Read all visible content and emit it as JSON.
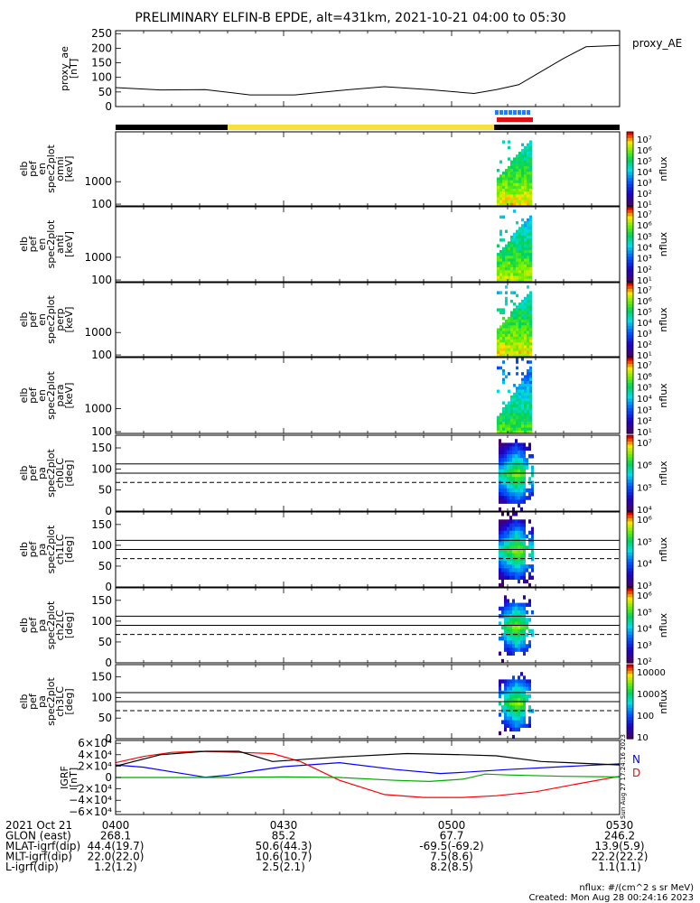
{
  "title": "PRELIMINARY ELFIN-B EPDE, alt=431km, 2021-10-21 04:00 to 05:30",
  "colors": {
    "n": "#0000ff",
    "d": "#ff0000",
    "ae_line": "#000000",
    "bar_black": "#000000",
    "bar_yellow": "#f7e03a",
    "bar_blue": "#1e7ff0",
    "bar_red": "#e01010"
  },
  "chart_data": [
    {
      "type": "line",
      "panel": "proxy_ae",
      "ylabel": [
        "proxy_ae",
        "[nT]"
      ],
      "legend": "proxy_AE",
      "yticks": [
        "250",
        "200",
        "150",
        "100",
        "50",
        "0"
      ],
      "ylim": [
        0,
        260
      ],
      "x_minutes": [
        0,
        8,
        16,
        24,
        32,
        40,
        48,
        56,
        64,
        68,
        72,
        76,
        80,
        84,
        90
      ],
      "values": [
        65,
        57,
        58,
        40,
        40,
        55,
        68,
        58,
        45,
        58,
        75,
        120,
        165,
        205,
        210
      ]
    },
    {
      "type": "heatmap",
      "panel": "elb_pef_en_spec2plot_omni",
      "ylabel": [
        "elb",
        "pef",
        "en",
        "spec2plot",
        "omni",
        "[keV]"
      ],
      "yticks": [
        "1000",
        "100"
      ],
      "zlabel": "nflux",
      "zticks": [
        "10⁷",
        "10⁶",
        "10⁵",
        "10⁴",
        "10³",
        "10²",
        "10¹"
      ]
    },
    {
      "type": "heatmap",
      "panel": "elb_pef_en_spec2plot_anti",
      "ylabel": [
        "elb",
        "pef",
        "en",
        "spec2plot",
        "anti",
        "[keV]"
      ],
      "yticks": [
        "1000",
        "100"
      ],
      "zlabel": "nflux",
      "zticks": [
        "10⁷",
        "10⁶",
        "10⁵",
        "10⁴",
        "10³",
        "10²",
        "10¹"
      ]
    },
    {
      "type": "heatmap",
      "panel": "elb_pef_en_spec2plot_perp",
      "ylabel": [
        "elb",
        "pef",
        "en",
        "spec2plot",
        "perp",
        "[keV]"
      ],
      "yticks": [
        "1000",
        "100"
      ],
      "zlabel": "nflux",
      "zticks": [
        "10⁷",
        "10⁶",
        "10⁵",
        "10⁴",
        "10³",
        "10²",
        "10¹"
      ]
    },
    {
      "type": "heatmap",
      "panel": "elb_pef_en_spec2plot_para",
      "ylabel": [
        "elb",
        "pef",
        "en",
        "spec2plot",
        "para",
        "[keV]"
      ],
      "yticks": [
        "1000",
        "100"
      ],
      "zlabel": "nflux",
      "zticks": [
        "10⁷",
        "10⁶",
        "10⁵",
        "10⁴",
        "10³",
        "10²",
        "10¹"
      ]
    },
    {
      "type": "heatmap",
      "panel": "elb_pef_pa_spec2plot_ch0LC",
      "ylabel": [
        "elb",
        "pef",
        "pa",
        "spec2plot",
        "ch0LC",
        "[deg]"
      ],
      "yticks": [
        "150",
        "100",
        "50",
        "0"
      ],
      "zlabel": "nflux",
      "zticks": [
        "10⁷",
        "10⁶",
        "10⁵",
        "10⁴"
      ]
    },
    {
      "type": "heatmap",
      "panel": "elb_pef_pa_spec2plot_ch1LC",
      "ylabel": [
        "elb",
        "pef",
        "pa",
        "spec2plot",
        "ch1LC",
        "[deg]"
      ],
      "yticks": [
        "150",
        "100",
        "50",
        "0"
      ],
      "zlabel": "nflux",
      "zticks": [
        "10⁶",
        "10⁵",
        "10⁴",
        "10³"
      ]
    },
    {
      "type": "heatmap",
      "panel": "elb_pef_pa_spec2plot_ch2LC",
      "ylabel": [
        "elb",
        "pef",
        "pa",
        "spec2plot",
        "ch2LC",
        "[deg]"
      ],
      "yticks": [
        "150",
        "100",
        "50",
        "0"
      ],
      "zlabel": "nflux",
      "zticks": [
        "10⁶",
        "10⁵",
        "10⁴",
        "10³",
        "10²"
      ]
    },
    {
      "type": "heatmap",
      "panel": "elb_pef_pa_spec2plot_ch3LC",
      "ylabel": [
        "elb",
        "pef",
        "pa",
        "spec2plot",
        "ch3LC",
        "[deg]"
      ],
      "yticks": [
        "150",
        "100",
        "50",
        "0"
      ],
      "zlabel": "nflux",
      "zticks": [
        "10000",
        "1000",
        "100",
        "10"
      ]
    },
    {
      "type": "line",
      "panel": "IGRF",
      "ylabel": [
        "IGRF",
        "[nT]"
      ],
      "yticks": [
        "6×10⁴",
        "4×10⁴",
        "2×10⁴",
        "0",
        "−2×10⁴",
        "−4×10⁴",
        "−6×10⁴"
      ],
      "ylim": [
        -65000,
        65000
      ],
      "legend": [
        "N",
        "D"
      ],
      "series": [
        {
          "name": "N",
          "color": "#0000ff",
          "x_minutes": [
            0,
            5,
            10,
            16,
            20,
            25,
            30,
            40,
            50,
            58,
            62,
            70,
            80,
            90
          ],
          "values": [
            22000,
            18000,
            10000,
            500,
            4000,
            12000,
            19000,
            26000,
            14000,
            7000,
            9000,
            14000,
            19000,
            24000
          ]
        },
        {
          "name": "D",
          "color": "#ff0000",
          "x_minutes": [
            0,
            5,
            10,
            15,
            22,
            28,
            33,
            40,
            48,
            55,
            62,
            68,
            75,
            82,
            90
          ],
          "values": [
            26000,
            37000,
            44000,
            46000,
            44000,
            42000,
            28000,
            -5000,
            -30000,
            -35000,
            -35000,
            -32000,
            -25000,
            -12000,
            2000
          ]
        },
        {
          "name": "",
          "color": "#00aa00",
          "x_minutes": [
            0,
            20,
            30,
            40,
            50,
            56,
            62,
            66,
            70,
            80,
            90
          ],
          "values": [
            0,
            0,
            1000,
            0,
            -5000,
            -7000,
            -3000,
            6000,
            4500,
            2000,
            1000
          ]
        },
        {
          "name": "",
          "color": "#000000",
          "x_minutes": [
            0,
            8,
            16,
            22,
            28,
            40,
            52,
            62,
            68,
            76,
            90
          ],
          "values": [
            20000,
            40000,
            46000,
            46000,
            28000,
            36000,
            42000,
            40000,
            38000,
            28000,
            22000
          ]
        }
      ]
    }
  ],
  "tick_labels": [
    "0400",
    "0430",
    "0500",
    "0530"
  ],
  "footer_rows": [
    {
      "label": "2021 Oct 21",
      "values": [
        "0400",
        "0430",
        "0500",
        "0530"
      ]
    },
    {
      "label": "GLON (east)",
      "values": [
        "268.1",
        "85.2",
        "67.7",
        "246.2"
      ]
    },
    {
      "label": "MLAT-igrf(dip)",
      "values": [
        "44.4(19.7)",
        "50.6(44.3)",
        "-69.5(-69.2)",
        "13.9(5.9)"
      ]
    },
    {
      "label": "MLT-igrf(dip)",
      "values": [
        "22.0(22.0)",
        "10.6(10.7)",
        "7.5(8.6)",
        "22.2(22.2)"
      ]
    },
    {
      "label": "L-igrf(dip)",
      "values": [
        "1.2(1.2)",
        "2.5(2.1)",
        "8.2(8.5)",
        "1.1(1.1)"
      ]
    }
  ],
  "footnote": "nflux: #/(cm^2 s sr MeV)",
  "created": "Created: Mon Aug 28 00:24:16 2023",
  "side_stamp": "Sun Aug 27 17:24:16 2023"
}
